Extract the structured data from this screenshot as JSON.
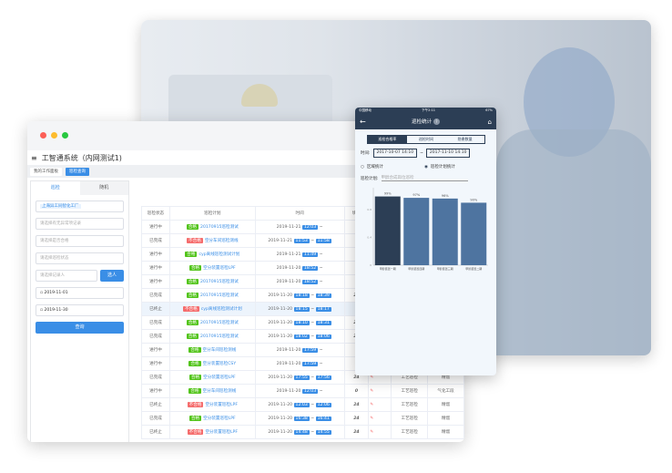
{
  "app": {
    "title": "工智通系统（内网测试1)",
    "tabs": [
      "我的工作面板",
      "巡检查询"
    ]
  },
  "filters": {
    "tabs": [
      "巡检",
      "随机"
    ],
    "company": "上海异工同智化工厂",
    "placeholders": [
      "请选择有无异常项记录",
      "请选择是否合格",
      "请选择巡检状态",
      "请选择记录人"
    ],
    "select_button": "选人",
    "date_from": "2019-11-01",
    "date_to": "2019-11-30",
    "query_button": "查询"
  },
  "table": {
    "headers": [
      "巡检状态",
      "巡检计划",
      "时间",
      "填写",
      "",
      "",
      ""
    ],
    "rows": [
      {
        "status": "进行中",
        "result": "合格",
        "plan": "20170915巡检测试",
        "date": "2019-11-21",
        "start": "12:03",
        "end": "",
        "fill": "0"
      },
      {
        "status": "已完成",
        "result": "不合格",
        "plan": "空分车间巡检测线",
        "date": "2019-11-21",
        "start": "11:53",
        "end": "11:58",
        "fill": "0"
      },
      {
        "status": "进行中",
        "result": "合格",
        "plan": "cyp离线巡检测试计划",
        "date": "2019-11-21",
        "start": "11:49",
        "end": "",
        "fill": "0"
      },
      {
        "status": "进行中",
        "result": "合格",
        "plan": "空分装置巡检LPF",
        "date": "2019-11-20",
        "start": "18:52",
        "end": "",
        "fill": "0"
      },
      {
        "status": "进行中",
        "result": "合格",
        "plan": "20170915巡检测试",
        "date": "2019-11-20",
        "start": "18:52",
        "end": "",
        "fill": "0"
      },
      {
        "status": "已完成",
        "result": "合格",
        "plan": "20170915巡检测试",
        "date": "2019-11-20",
        "start": "18:18",
        "end": "18:39",
        "fill": "22"
      },
      {
        "status": "已终止",
        "result": "不合格",
        "plan": "cyp离线巡检测试计划",
        "date": "2019-11-20",
        "start": "18:15",
        "end": "18:17",
        "fill": "0"
      },
      {
        "status": "已完成",
        "result": "合格",
        "plan": "20170915巡检测试",
        "date": "2019-11-20",
        "start": "18:10",
        "end": "18:31",
        "fill": "22"
      },
      {
        "status": "已完成",
        "result": "合格",
        "plan": "20170915巡检测试",
        "date": "2019-11-20",
        "start": "18:02",
        "end": "18:06",
        "fill": "22"
      },
      {
        "status": "进行中",
        "result": "合格",
        "plan": "空分车间巡检测线",
        "date": "2019-11-20",
        "start": "17:59",
        "end": "",
        "fill": "0"
      },
      {
        "status": "进行中",
        "result": "合格",
        "plan": "空分装置巡检CSY",
        "date": "2019-11-20",
        "start": "17:59",
        "end": "",
        "fill": "0"
      },
      {
        "status": "已完成",
        "result": "合格",
        "plan": "空分装置巡检LPF",
        "date": "2019-11-20",
        "start": "17:55",
        "end": "17:56",
        "fill": "24",
        "type": "工艺巡检",
        "area": "精馏"
      },
      {
        "status": "进行中",
        "result": "合格",
        "plan": "空分车间巡检测线",
        "date": "2019-11-20",
        "start": "12:03",
        "end": "",
        "fill": "0",
        "type": "工艺巡检",
        "area": "气化工段"
      },
      {
        "status": "已终止",
        "result": "不合格",
        "plan": "空分装置巡检LPF",
        "date": "2019-11-20",
        "start": "12:03",
        "end": "12:06",
        "fill": "24",
        "type": "工艺巡检",
        "area": "精馏"
      },
      {
        "status": "已完成",
        "result": "合格",
        "plan": "空分装置巡检LPF",
        "date": "2019-11-20",
        "start": "16:38",
        "end": "16:41",
        "fill": "24",
        "type": "工艺巡检",
        "area": "精馏"
      },
      {
        "status": "已终止",
        "result": "不合格",
        "plan": "空分装置巡检LPF",
        "date": "2019-11-20",
        "start": "14:48",
        "end": "14:55",
        "fill": "24",
        "type": "工艺巡检",
        "area": "精馏"
      }
    ]
  },
  "phone": {
    "carrier": "中国移动",
    "clock": "下午2:11",
    "battery": "67%",
    "title": "巡检统计",
    "segments": [
      "巡检合格率",
      "巡检时间",
      "隐患数量"
    ],
    "time_label": "时间:",
    "from": "2017-10-07 14:10",
    "to": "2017-11-10 14:10",
    "radio_area": "区域统计",
    "radio_plan": "巡检计划统计",
    "plan_label": "巡检计划:",
    "plan_placeholder": "甲醇合成岗位巡检"
  },
  "chart_data": {
    "type": "bar",
    "categories": [
      "甲醇装置一期",
      "甲醇装置四期",
      "甲醇装置三期",
      "甲醇装置二期"
    ],
    "values": [
      0.99,
      0.97,
      0.96,
      0.9
    ],
    "labels": [
      "99%",
      "97%",
      "96%",
      "90%"
    ],
    "yticks": [
      "0",
      "0.4",
      "0.8"
    ],
    "ylim": [
      0,
      1.05
    ],
    "colors": [
      "#2c3e55",
      "#4e74a0",
      "#4e74a0",
      "#4e74a0"
    ]
  }
}
